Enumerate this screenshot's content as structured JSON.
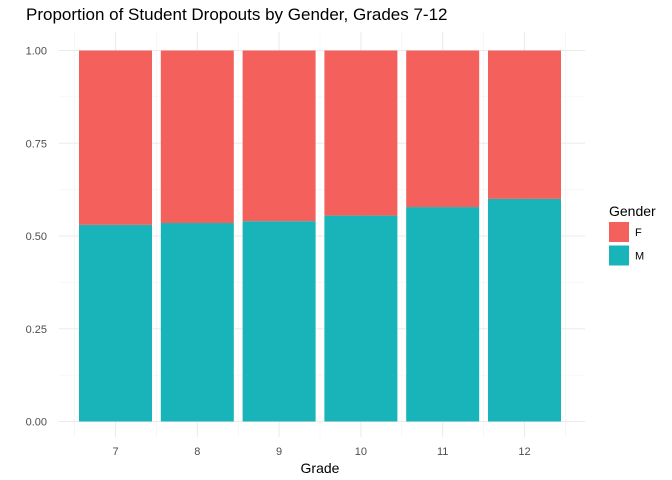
{
  "chart_data": {
    "type": "bar",
    "stacked": true,
    "title": "Proportion of Student Dropouts by Gender, Grades 7-12",
    "xlabel": "Grade",
    "ylabel": "",
    "categories": [
      "7",
      "8",
      "9",
      "10",
      "11",
      "12"
    ],
    "series": [
      {
        "name": "M",
        "color": "#19b4b9",
        "values": [
          0.53,
          0.535,
          0.54,
          0.555,
          0.578,
          0.6
        ]
      },
      {
        "name": "F",
        "color": "#f4615c",
        "values": [
          0.47,
          0.465,
          0.46,
          0.445,
          0.422,
          0.4
        ]
      }
    ],
    "ylim": [
      0,
      1
    ],
    "yticks": [
      "0.00",
      "0.25",
      "0.50",
      "0.75",
      "1.00"
    ],
    "grid": true,
    "legend": {
      "title": "Gender",
      "position": "right",
      "entries": [
        {
          "label": "F",
          "color": "#f4615c"
        },
        {
          "label": "M",
          "color": "#19b4b9"
        }
      ]
    }
  }
}
